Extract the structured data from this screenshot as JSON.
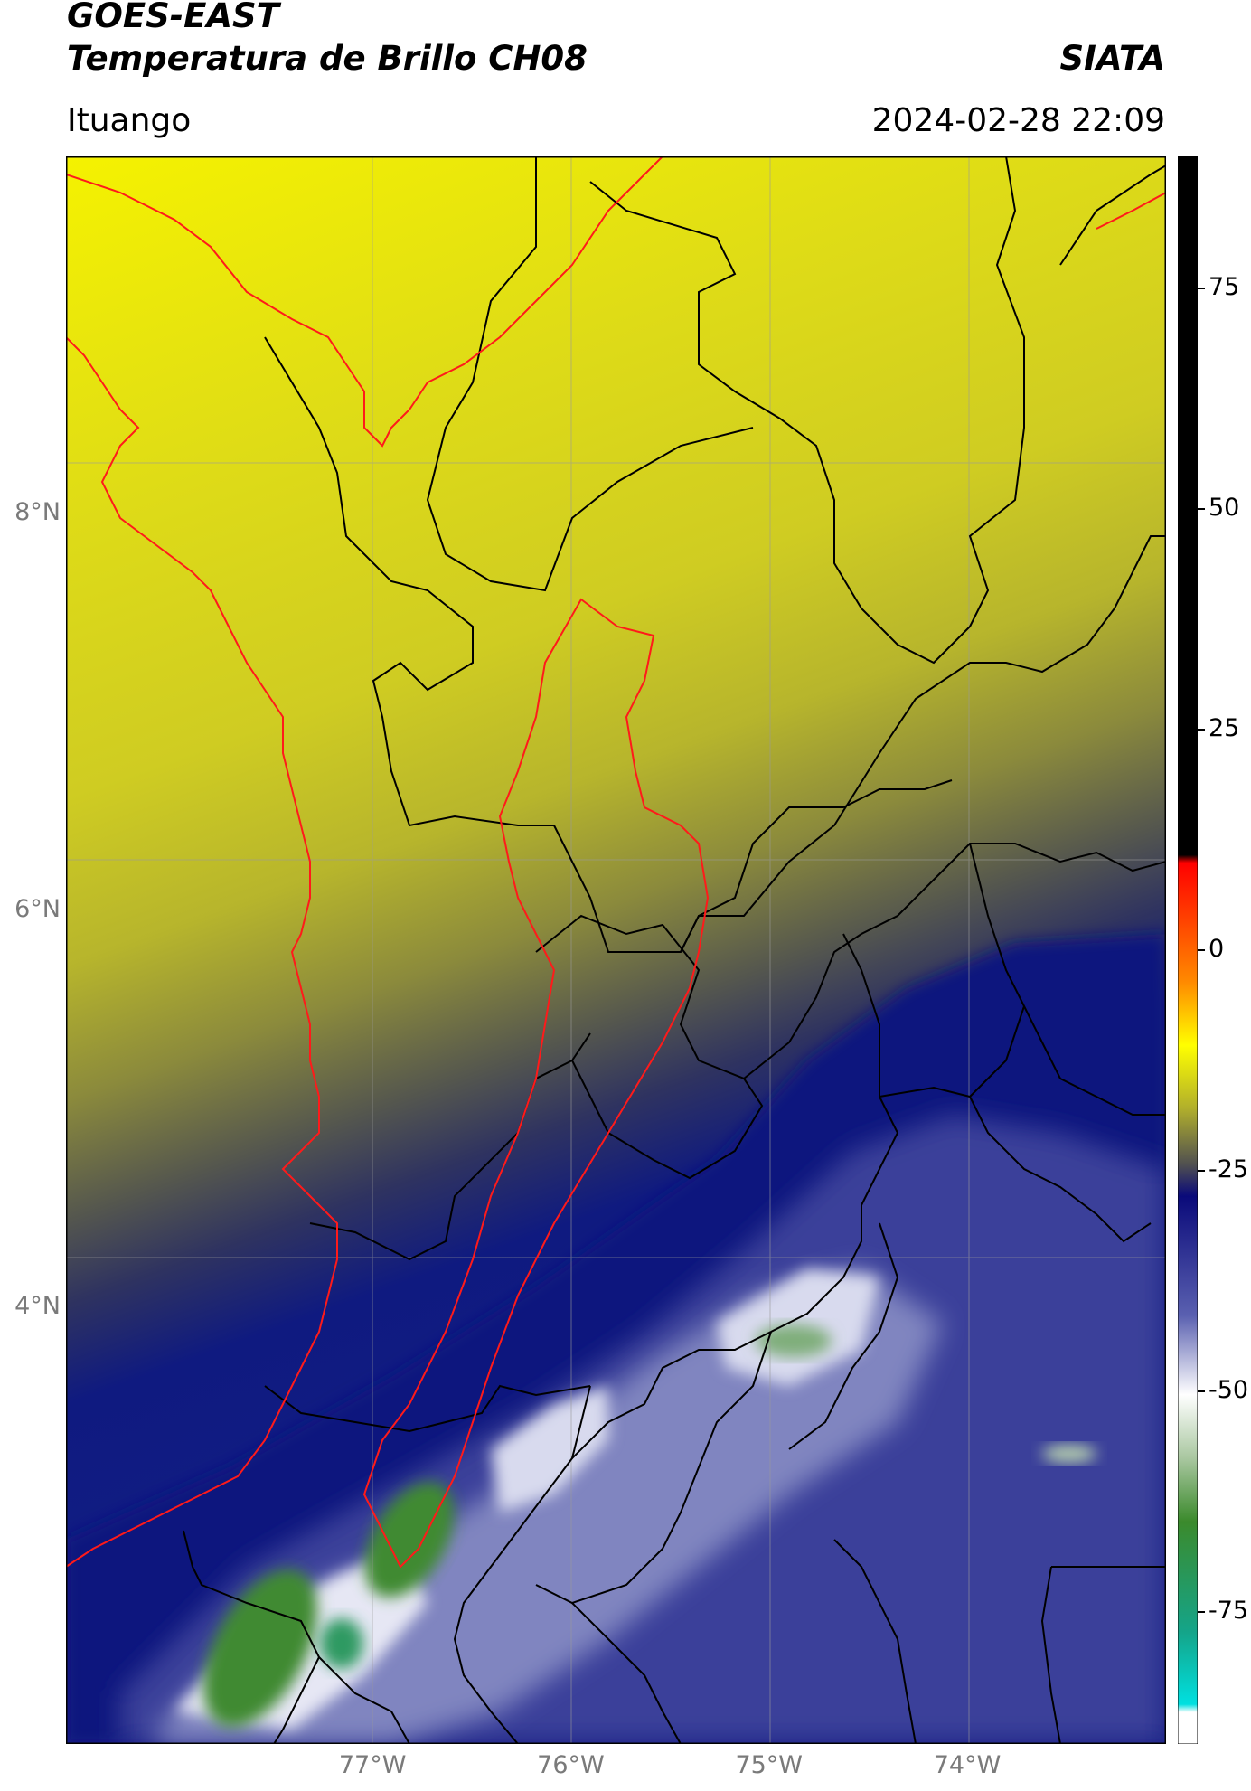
{
  "header": {
    "title_line1": "GOES-EAST",
    "title_line2": "Temperatura de Brillo CH08",
    "brand": "SIATA",
    "location": "Ituango",
    "datetime": "2024-02-28 22:09"
  },
  "map": {
    "extent_lon": [
      -78.55,
      -73.0
    ],
    "extent_lat": [
      1.8,
      9.8
    ],
    "lat_ticks": [
      {
        "value": 8,
        "label": "8°N"
      },
      {
        "value": 6,
        "label": "6°N"
      },
      {
        "value": 4,
        "label": "4°N"
      }
    ],
    "lon_ticks": [
      {
        "value": -77,
        "label": "77°W"
      },
      {
        "value": -76,
        "label": "76°W"
      },
      {
        "value": -75,
        "label": "75°W"
      },
      {
        "value": -74,
        "label": "74°W"
      }
    ],
    "gridlines": true,
    "colors": {
      "coastline": "#ff1a1a",
      "basin_outline": "#ff1a1a",
      "admin_boundaries": "#000000"
    }
  },
  "colorbar": {
    "range": [
      -90,
      90
    ],
    "ticks": [
      {
        "value": 75,
        "label": "75"
      },
      {
        "value": 50,
        "label": "50"
      },
      {
        "value": 25,
        "label": "25"
      },
      {
        "value": 0,
        "label": "0"
      },
      {
        "value": -25,
        "label": "-25"
      },
      {
        "value": -50,
        "label": "-50"
      },
      {
        "value": -75,
        "label": "-75"
      }
    ]
  }
}
